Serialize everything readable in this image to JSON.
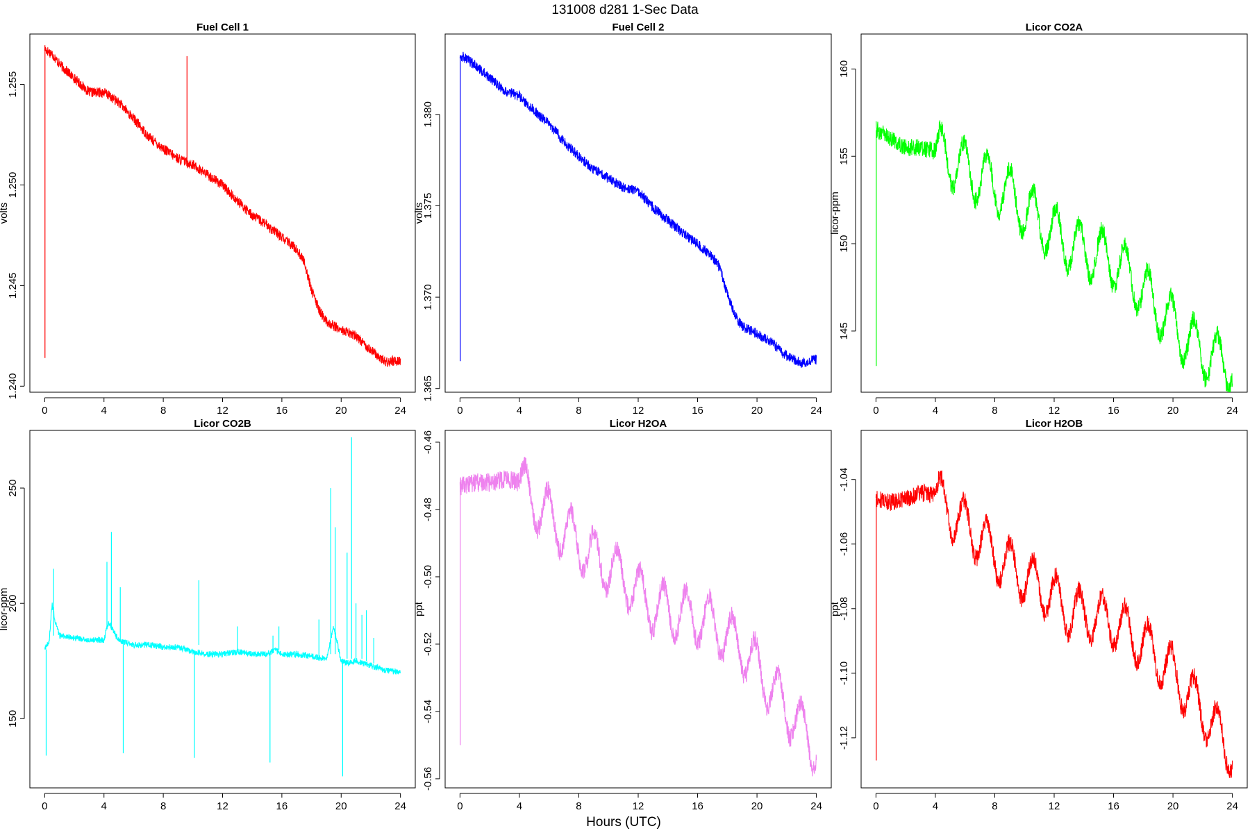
{
  "figure": {
    "title": "131008   d281   1-Sec Data",
    "xlabel": "Hours (UTC)"
  },
  "chart_data": [
    {
      "type": "line",
      "title": "Fuel Cell 1",
      "xlabel": "",
      "ylabel": "volts",
      "color": "#ff0000",
      "xlim": [
        -1,
        25
      ],
      "ylim": [
        1.2397,
        1.2575
      ],
      "xticks": [
        0,
        4,
        8,
        12,
        16,
        20,
        24
      ],
      "yticks": [
        "1.240",
        "1.245",
        "1.250",
        "1.255"
      ],
      "yticks_values": [
        1.24,
        1.245,
        1.25,
        1.255
      ],
      "noise": 0.00025,
      "series": [
        {
          "x": [
            0,
            0.1,
            0.5,
            1,
            2,
            3,
            4,
            5,
            6,
            7,
            8,
            9,
            10,
            11,
            12,
            13,
            14,
            15,
            16,
            17,
            17.5,
            18,
            18.5,
            19,
            20,
            21,
            22,
            23,
            24
          ],
          "y": [
            1.2568,
            1.2567,
            1.2565,
            1.256,
            1.2553,
            1.2546,
            1.2546,
            1.2541,
            1.2533,
            1.2524,
            1.2518,
            1.2513,
            1.251,
            1.2505,
            1.25,
            1.2492,
            1.2485,
            1.248,
            1.2474,
            1.2468,
            1.2462,
            1.2448,
            1.2438,
            1.2432,
            1.2428,
            1.2425,
            1.2418,
            1.2412,
            1.2413
          ]
        }
      ],
      "spikes": [
        {
          "x": 0.02,
          "y_from": 1.2568,
          "y_to": 1.2414
        },
        {
          "x": 9.6,
          "y_from": 1.251,
          "y_to": 1.2564
        }
      ]
    },
    {
      "type": "line",
      "title": "Fuel Cell 2",
      "xlabel": "",
      "ylabel": "volts",
      "color": "#0000ff",
      "xlim": [
        -1,
        25
      ],
      "ylim": [
        1.3648,
        1.3844
      ],
      "xticks": [
        0,
        4,
        8,
        12,
        16,
        20,
        24
      ],
      "yticks": [
        "1.365",
        "1.370",
        "1.375",
        "1.380"
      ],
      "yticks_values": [
        1.365,
        1.37,
        1.375,
        1.38
      ],
      "noise": 0.00028,
      "series": [
        {
          "x": [
            0,
            0.1,
            0.5,
            1,
            2,
            3,
            4,
            5,
            6,
            7,
            8,
            9,
            10,
            11,
            12,
            13,
            14,
            15,
            16,
            17,
            17.5,
            18,
            18.5,
            19,
            20,
            21,
            22,
            23,
            24
          ],
          "y": [
            1.3833,
            1.3832,
            1.383,
            1.3827,
            1.382,
            1.3813,
            1.381,
            1.3802,
            1.3795,
            1.3785,
            1.3777,
            1.377,
            1.3765,
            1.376,
            1.3758,
            1.3749,
            1.3742,
            1.3735,
            1.3729,
            1.3722,
            1.3716,
            1.3702,
            1.369,
            1.3684,
            1.368,
            1.3675,
            1.3668,
            1.3664,
            1.3666
          ]
        }
      ],
      "spikes": [
        {
          "x": 0.02,
          "y_from": 1.3832,
          "y_to": 1.3665
        }
      ]
    },
    {
      "type": "line",
      "title": "Licor CO2A",
      "xlabel": "",
      "ylabel": "licor-ppm",
      "color": "#00ff00",
      "xlim": [
        -1,
        25
      ],
      "ylim": [
        141.5,
        162.0
      ],
      "xticks": [
        0,
        4,
        8,
        12,
        16,
        20,
        24
      ],
      "yticks": [
        "145",
        "150",
        "155",
        "160"
      ],
      "yticks_values": [
        145,
        150,
        155,
        160
      ],
      "noise": 0.5,
      "oscillation": {
        "start": 4,
        "period": 1.55,
        "amplitude": 1.5
      },
      "series": [
        {
          "x": [
            0,
            0.1,
            1,
            2,
            3,
            4,
            5,
            6,
            7,
            8,
            9,
            10,
            11,
            12,
            13,
            14,
            15,
            16,
            17,
            18,
            19,
            20,
            21,
            22,
            23,
            24
          ],
          "y": [
            156.5,
            156.5,
            156.0,
            155.5,
            155.5,
            155.3,
            154.8,
            154.3,
            153.8,
            153.5,
            152.8,
            152.0,
            151.3,
            150.6,
            150.0,
            149.6,
            149.4,
            149.0,
            148.3,
            147.3,
            146.3,
            145.4,
            144.5,
            143.8,
            143.3,
            143.2
          ]
        }
      ],
      "spikes": [
        {
          "x": 0.02,
          "y_from": 156.5,
          "y_to": 143.0
        }
      ]
    },
    {
      "type": "line",
      "title": "Licor CO2B",
      "xlabel": "",
      "ylabel": "licor-ppm",
      "color": "#00ffff",
      "xlim": [
        -1,
        25
      ],
      "ylim": [
        120.0,
        275.0
      ],
      "xticks": [
        0,
        4,
        8,
        12,
        16,
        20,
        24
      ],
      "yticks": [
        "150",
        "200",
        "250"
      ],
      "yticks_values": [
        150,
        200,
        250
      ],
      "noise": 1.3,
      "series": [
        {
          "x": [
            0,
            0.05,
            0.3,
            0.5,
            0.7,
            1,
            2,
            3,
            4,
            4.3,
            4.8,
            5,
            6,
            7,
            8,
            9,
            10,
            11,
            12,
            13,
            14,
            15,
            15.5,
            16,
            17,
            18,
            19,
            19.5,
            20,
            20.5,
            21,
            21.5,
            22,
            22.5,
            23,
            24
          ],
          "y": [
            180,
            181,
            183,
            200,
            192,
            186,
            185,
            184,
            184,
            192,
            186,
            184,
            182,
            182,
            181,
            181,
            179,
            178,
            178,
            179,
            178,
            178,
            180,
            178,
            178,
            177,
            176,
            190,
            175,
            174,
            175,
            174,
            173,
            172,
            171,
            170
          ]
        }
      ],
      "spikes": [
        {
          "x": 0.1,
          "y_from": 180,
          "y_to": 134
        },
        {
          "x": 0.6,
          "y_from": 186,
          "y_to": 215
        },
        {
          "x": 4.2,
          "y_from": 190,
          "y_to": 218
        },
        {
          "x": 4.5,
          "y_from": 190,
          "y_to": 231
        },
        {
          "x": 5.1,
          "y_from": 184,
          "y_to": 207
        },
        {
          "x": 5.3,
          "y_from": 183,
          "y_to": 135
        },
        {
          "x": 10.1,
          "y_from": 179,
          "y_to": 133
        },
        {
          "x": 10.4,
          "y_from": 182,
          "y_to": 210
        },
        {
          "x": 13,
          "y_from": 179,
          "y_to": 190
        },
        {
          "x": 15.2,
          "y_from": 178,
          "y_to": 131
        },
        {
          "x": 15.4,
          "y_from": 180,
          "y_to": 186
        },
        {
          "x": 15.8,
          "y_from": 180,
          "y_to": 190
        },
        {
          "x": 18.5,
          "y_from": 177,
          "y_to": 193
        },
        {
          "x": 19.3,
          "y_from": 178,
          "y_to": 250
        },
        {
          "x": 19.6,
          "y_from": 178,
          "y_to": 233
        },
        {
          "x": 20.1,
          "y_from": 176,
          "y_to": 125
        },
        {
          "x": 20.4,
          "y_from": 176,
          "y_to": 222
        },
        {
          "x": 20.7,
          "y_from": 176,
          "y_to": 272
        },
        {
          "x": 21.0,
          "y_from": 176,
          "y_to": 200
        },
        {
          "x": 21.4,
          "y_from": 176,
          "y_to": 195
        },
        {
          "x": 21.7,
          "y_from": 175,
          "y_to": 197
        },
        {
          "x": 22.2,
          "y_from": 174,
          "y_to": 185
        }
      ]
    },
    {
      "type": "line",
      "title": "Licor H2OA",
      "xlabel": "",
      "ylabel": "ppt",
      "color": "#ee82ee",
      "xlim": [
        -1,
        25
      ],
      "ylim": [
        -0.5627,
        -0.4565
      ],
      "xticks": [
        0,
        4,
        8,
        12,
        16,
        20,
        24
      ],
      "yticks": [
        "-0.56",
        "-0.54",
        "-0.52",
        "-0.50",
        "-0.48",
        "-0.46"
      ],
      "yticks_values": [
        -0.56,
        -0.54,
        -0.52,
        -0.5,
        -0.48,
        -0.46
      ],
      "noise": 0.0028,
      "oscillation": {
        "start": 4,
        "period": 1.55,
        "amplitude": 0.0075
      },
      "series": [
        {
          "x": [
            0,
            0.1,
            1,
            2,
            3,
            4,
            5,
            6,
            7,
            8,
            9,
            10,
            11,
            12,
            13,
            14,
            15,
            16,
            17,
            18,
            19,
            20,
            21,
            22,
            23,
            24
          ],
          "y": [
            -0.473,
            -0.473,
            -0.472,
            -0.472,
            -0.471,
            -0.472,
            -0.478,
            -0.482,
            -0.486,
            -0.49,
            -0.494,
            -0.497,
            -0.5,
            -0.505,
            -0.509,
            -0.51,
            -0.511,
            -0.512,
            -0.514,
            -0.518,
            -0.521,
            -0.527,
            -0.533,
            -0.539,
            -0.545,
            -0.551
          ]
        }
      ],
      "spikes": [
        {
          "x": 0.02,
          "y_from": -0.473,
          "y_to": -0.55
        }
      ]
    },
    {
      "type": "line",
      "title": "Licor H2OB",
      "xlabel": "",
      "ylabel": "ppt",
      "color": "#ff0000",
      "xlim": [
        -1,
        25
      ],
      "ylim": [
        -1.1355,
        -1.0248
      ],
      "xticks": [
        0,
        4,
        8,
        12,
        16,
        20,
        24
      ],
      "yticks": [
        "-1.12",
        "-1.10",
        "-1.08",
        "-1.06",
        "-1.04"
      ],
      "yticks_values": [
        -1.12,
        -1.1,
        -1.08,
        -1.06,
        -1.04
      ],
      "noise": 0.0028,
      "oscillation": {
        "start": 4,
        "period": 1.55,
        "amplitude": 0.0075
      },
      "series": [
        {
          "x": [
            0,
            0.1,
            1,
            2,
            3,
            4,
            5,
            6,
            7,
            8,
            9,
            10,
            11,
            12,
            13,
            14,
            15,
            16,
            17,
            18,
            19,
            20,
            21,
            22,
            23,
            24
          ],
          "y": [
            -1.046,
            -1.046,
            -1.047,
            -1.046,
            -1.044,
            -1.045,
            -1.05,
            -1.054,
            -1.058,
            -1.063,
            -1.067,
            -1.07,
            -1.073,
            -1.077,
            -1.081,
            -1.082,
            -1.083,
            -1.084,
            -1.087,
            -1.091,
            -1.095,
            -1.1,
            -1.106,
            -1.112,
            -1.118,
            -1.125
          ]
        }
      ],
      "spikes": [
        {
          "x": 0.02,
          "y_from": -1.046,
          "y_to": -1.127
        }
      ]
    }
  ]
}
